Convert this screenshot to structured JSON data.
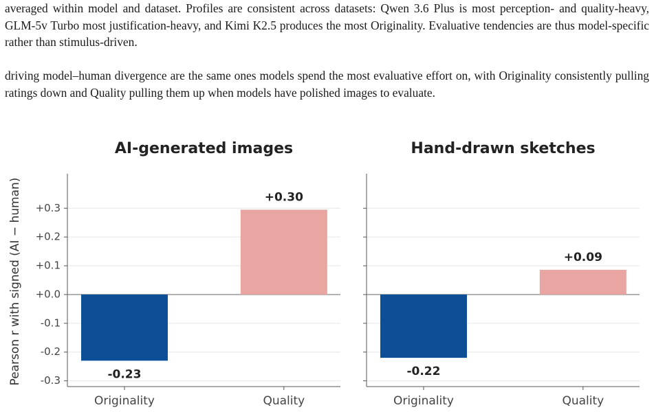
{
  "paragraphs": [
    "averaged within model and dataset. Profiles are consistent across datasets: Qwen 3.6 Plus is most perception- and quality-heavy, GLM-5v Turbo most justification-heavy, and Kimi K2.5 produces the most Originality. Evaluative tendencies are thus model-specific rather than stimulus-driven.",
    "driving model–human divergence are the same ones models spend the most evaluative effort on, with Originality consistently pulling ratings down and Quality pulling them up when models have polished images to evaluate."
  ],
  "chart_data": [
    {
      "type": "bar",
      "title": "AI-generated images",
      "ylabel": "Pearson r with signed (AI − human)",
      "categories": [
        "Originality",
        "Quality"
      ],
      "values": [
        -0.23,
        0.295
      ],
      "value_labels": [
        "-0.23",
        "+0.30"
      ],
      "colors": [
        "#0d4f96",
        "#e8a5a2"
      ],
      "ylim": [
        -0.32,
        0.42
      ],
      "yticks": [
        {
          "value": 0.3,
          "label": "+0.3"
        },
        {
          "value": 0.2,
          "label": "+0.2"
        },
        {
          "value": 0.1,
          "label": "+0.1"
        },
        {
          "value": 0,
          "label": "+0.0"
        },
        -0.1,
        -0.2,
        -0.3
      ],
      "grid": true
    },
    {
      "type": "bar",
      "title": "Hand-drawn sketches",
      "categories": [
        "Originality",
        "Quality"
      ],
      "values": [
        -0.22,
        0.086
      ],
      "value_labels": [
        "-0.22",
        "+0.09"
      ],
      "colors": [
        "#0d4f96",
        "#e8a5a2"
      ],
      "sharey": true,
      "grid": true
    }
  ]
}
